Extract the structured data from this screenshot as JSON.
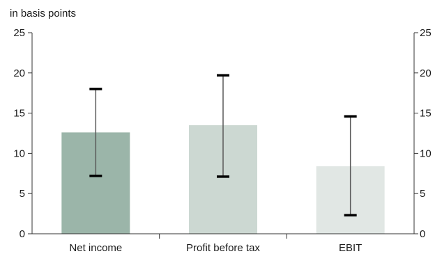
{
  "chart_data": {
    "type": "bar",
    "unit_label": "in basis points",
    "categories": [
      "Net income",
      "Profit before tax",
      "EBIT"
    ],
    "values": [
      12.6,
      13.5,
      8.4
    ],
    "error_bars": [
      {
        "low": 7.2,
        "high": 18.0
      },
      {
        "low": 7.1,
        "high": 19.7
      },
      {
        "low": 2.3,
        "high": 14.6
      }
    ],
    "ylim": [
      0,
      25
    ],
    "yticks": [
      "0",
      "5",
      "10",
      "15",
      "20",
      "25"
    ],
    "y_axis_both_sides": true,
    "grid": false,
    "legend": "none",
    "bar_colors": [
      "#9bb5a9",
      "#ccd8d2",
      "#e1e7e4"
    ],
    "error_bar_color": "#595959",
    "error_cap_color": "#000000",
    "axis_color": "#333333"
  }
}
